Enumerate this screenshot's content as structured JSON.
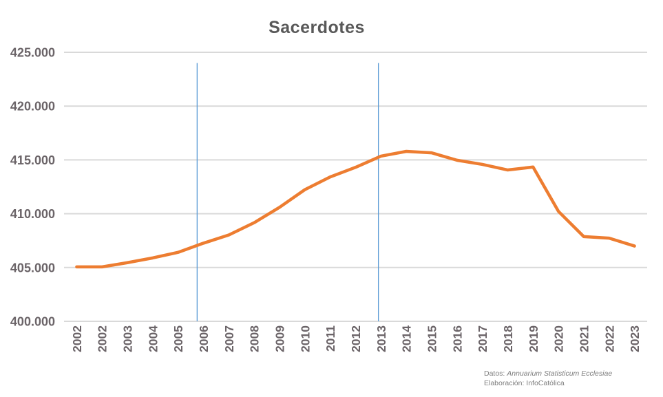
{
  "chart_data": {
    "type": "line",
    "title": "Sacerdotes",
    "categories": [
      "2002",
      "2002",
      "2003",
      "2004",
      "2005",
      "2006",
      "2007",
      "2008",
      "2009",
      "2010",
      "2011",
      "2012",
      "2013",
      "2014",
      "2015",
      "2016",
      "2017",
      "2018",
      "2019",
      "2020",
      "2021",
      "2022",
      "2023"
    ],
    "series": [
      {
        "name": "Sacerdotes",
        "color": "#ED7D31",
        "values": [
          405058,
          405058,
          405450,
          405891,
          406411,
          407262,
          408024,
          409166,
          410593,
          412236,
          413418,
          414313,
          415348,
          415792,
          415656,
          414969,
          414582,
          414065,
          414336,
          410219,
          407872,
          407730,
          406996
        ]
      }
    ],
    "y_ticks": [
      {
        "value": 400000,
        "label": "400.000"
      },
      {
        "value": 405000,
        "label": "405.000"
      },
      {
        "value": 410000,
        "label": "410.000"
      },
      {
        "value": 415000,
        "label": "415.000"
      },
      {
        "value": 420000,
        "label": "420.000"
      },
      {
        "value": 425000,
        "label": "425.000"
      }
    ],
    "ylim": [
      400000,
      425000
    ],
    "xlabel": "",
    "ylabel": "",
    "grid": "horizontal",
    "legend": "none",
    "x_label_rotation": -90,
    "reference_lines": [
      {
        "index": 4.75,
        "from": 400000,
        "to": 424000,
        "color": "#5B9BD5"
      },
      {
        "index": 11.9,
        "from": 400000,
        "to": 424000,
        "color": "#5B9BD5"
      }
    ]
  },
  "footer": {
    "line1_label": "Datos: ",
    "line1_source": "Annuarium Statisticum Ecclesiae",
    "line2": "Elaboración: InfoCatólica"
  },
  "colors": {
    "background": "#FFFFFF",
    "series_line": "#ED7D31",
    "reference_line": "#5B9BD5",
    "gridline": "#D9D9D9",
    "title_text": "#595959",
    "tick_label_text": "#6B6468",
    "footer_text": "#7C7C7C"
  }
}
